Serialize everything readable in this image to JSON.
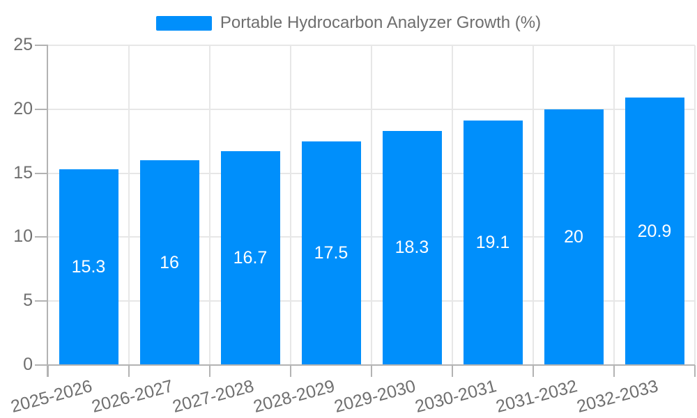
{
  "legend": {
    "label": "Portable Hydrocarbon Analyzer Growth (%)",
    "swatch_color": "#008ffb"
  },
  "chart_data": {
    "type": "bar",
    "title": "Portable Hydrocarbon Analyzer Growth (%)",
    "categories": [
      "2025-2026",
      "2026-2027",
      "2027-2028",
      "2028-2029",
      "2029-2030",
      "2030-2031",
      "2031-2032",
      "2032-2033"
    ],
    "values": [
      15.3,
      16,
      16.7,
      17.5,
      18.3,
      19.1,
      20,
      20.9
    ],
    "bar_labels": [
      "15.3",
      "16",
      "16.7",
      "17.5",
      "18.3",
      "19.1",
      "20",
      "20.9"
    ],
    "xlabel": "",
    "ylabel": "",
    "ylim": [
      0,
      25
    ],
    "yticks": [
      0,
      5,
      10,
      15,
      20,
      25
    ],
    "ytick_labels": [
      "0",
      "5",
      "10",
      "15",
      "20",
      "25"
    ],
    "grid": true,
    "legend_position": "top",
    "x_label_rotation_deg": -15,
    "colors": {
      "bar": "#008ffb",
      "bar_label": "#ffffff",
      "grid": "#e7e7e7",
      "axis_line": "#b3b3b3",
      "axis_text": "#6f6f6f",
      "legend_text": "#6e6e6e",
      "background": "#ffffff"
    }
  }
}
